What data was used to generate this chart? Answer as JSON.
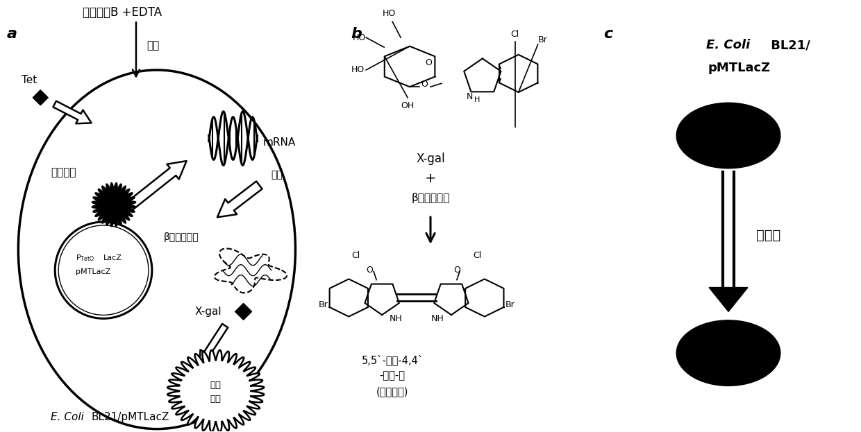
{
  "panel_a_label": "a",
  "panel_b_label": "b",
  "panel_c_label": "c",
  "title_top": "多粘菌素B +EDTA",
  "tet_label": "Tet",
  "sensitize_label": "敏化",
  "block_protein": "阻遏蛋白",
  "mrna_label": "mRNA",
  "transcription_label": "转录",
  "beta_gal_label": "β半乳糖苷酶",
  "xgal_label": "X-gal",
  "blue_spot_label": "蓝色\n斑点",
  "ecoli_label_italic": "E. Coli",
  "ecoli_label_normal": " BL21/pMTLacZ",
  "panel_b_xgal": "X-gal",
  "panel_b_plus": "+",
  "panel_b_enzyme": "β半乳糖苷酶",
  "product_line1": "5,5`-二溴-4,4`",
  "product_line2": "-二氯-靛",
  "product_line3": "(蓝色沉淀)",
  "panel_c_title_italic": "E. Coli",
  "panel_c_title_bold": " BL21/",
  "panel_c_title_bold2": "pMTLacZ",
  "tetracycline_label": "四环素",
  "bg_color": "#ffffff",
  "black": "#000000"
}
